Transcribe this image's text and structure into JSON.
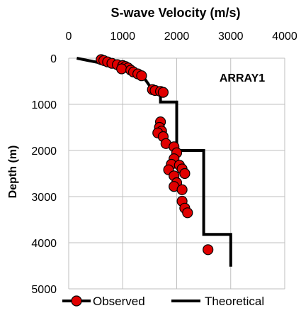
{
  "chart_data": {
    "type": "scatter",
    "title": "S-wave Velocity (m/s)",
    "xlabel": "S-wave Velocity (m/s)",
    "ylabel": "Depth (m)",
    "xlim": [
      0,
      4000
    ],
    "ylim": [
      0,
      5000
    ],
    "y_inverted": true,
    "x_axis_position": "top",
    "x_ticks": [
      "0",
      "1000",
      "2000",
      "3000",
      "4000"
    ],
    "y_ticks": [
      "0",
      "1000",
      "2000",
      "3000",
      "4000",
      "5000"
    ],
    "grid": true,
    "legend_position": "bottom",
    "annotation": "ARRAY1",
    "series": [
      {
        "name": "Observed",
        "kind": "markers",
        "color": "#e00000",
        "edge_color": "#000000",
        "points": [
          {
            "x": 600,
            "y": 30
          },
          {
            "x": 650,
            "y": 50
          },
          {
            "x": 720,
            "y": 80
          },
          {
            "x": 800,
            "y": 110
          },
          {
            "x": 900,
            "y": 140
          },
          {
            "x": 1000,
            "y": 160
          },
          {
            "x": 1050,
            "y": 180
          },
          {
            "x": 1100,
            "y": 210
          },
          {
            "x": 980,
            "y": 230
          },
          {
            "x": 1150,
            "y": 260
          },
          {
            "x": 1200,
            "y": 300
          },
          {
            "x": 1280,
            "y": 340
          },
          {
            "x": 1350,
            "y": 380
          },
          {
            "x": 1550,
            "y": 680
          },
          {
            "x": 1600,
            "y": 700
          },
          {
            "x": 1700,
            "y": 720
          },
          {
            "x": 1750,
            "y": 740
          },
          {
            "x": 1700,
            "y": 1380
          },
          {
            "x": 1680,
            "y": 1500
          },
          {
            "x": 1720,
            "y": 1580
          },
          {
            "x": 1650,
            "y": 1620
          },
          {
            "x": 1750,
            "y": 1700
          },
          {
            "x": 1800,
            "y": 1850
          },
          {
            "x": 1950,
            "y": 1920
          },
          {
            "x": 2000,
            "y": 2050
          },
          {
            "x": 1950,
            "y": 2180
          },
          {
            "x": 1900,
            "y": 2300
          },
          {
            "x": 2050,
            "y": 2320
          },
          {
            "x": 2100,
            "y": 2400
          },
          {
            "x": 1850,
            "y": 2420
          },
          {
            "x": 2150,
            "y": 2500
          },
          {
            "x": 1950,
            "y": 2550
          },
          {
            "x": 2000,
            "y": 2700
          },
          {
            "x": 1950,
            "y": 2780
          },
          {
            "x": 2100,
            "y": 2850
          },
          {
            "x": 2100,
            "y": 3100
          },
          {
            "x": 2150,
            "y": 3250
          },
          {
            "x": 2200,
            "y": 3350
          },
          {
            "x": 2580,
            "y": 4150
          }
        ]
      },
      {
        "name": "Theoretical",
        "kind": "line",
        "color": "#000000",
        "points": [
          {
            "x": 150,
            "y": 0
          },
          {
            "x": 1000,
            "y": 200
          },
          {
            "x": 1350,
            "y": 350
          },
          {
            "x": 1500,
            "y": 600
          },
          {
            "x": 1700,
            "y": 800
          },
          {
            "x": 1700,
            "y": 950
          },
          {
            "x": 2000,
            "y": 950
          },
          {
            "x": 2000,
            "y": 2000
          },
          {
            "x": 2500,
            "y": 2000
          },
          {
            "x": 2500,
            "y": 3820
          },
          {
            "x": 3000,
            "y": 3820
          },
          {
            "x": 3000,
            "y": 4520
          }
        ]
      }
    ]
  }
}
